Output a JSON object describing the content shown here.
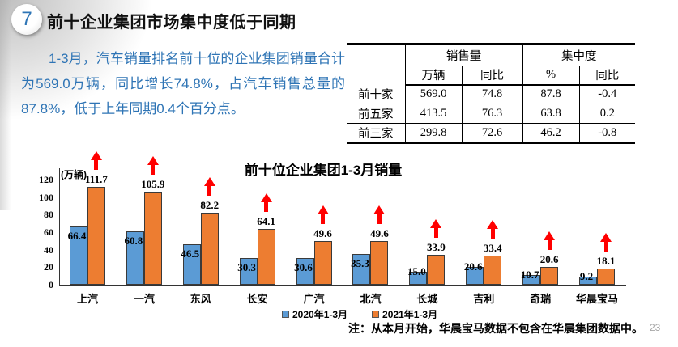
{
  "slide": {
    "badge": "7",
    "title": "前十企业集团市场集中度低于同期",
    "paragraph": "1-3月，汽车销量排名前十位的企业集团销量合计为569.0万辆，同比增长74.8%，占汽车销售总量的87.8%，低于上年同期0.4个百分点。",
    "note": "注：从本月开始，华晨宝马数据不包含在华晨集团数据中。",
    "page_number": "23"
  },
  "table": {
    "group_headers": [
      "销售量",
      "集中度"
    ],
    "sub_headers": [
      "万辆",
      "同比",
      "%",
      "同比"
    ],
    "rows": [
      {
        "label": "前十家",
        "values": [
          "569.0",
          "74.8",
          "87.8",
          "-0.4"
        ]
      },
      {
        "label": "前五家",
        "values": [
          "413.5",
          "76.3",
          "63.8",
          "0.2"
        ]
      },
      {
        "label": "前三家",
        "values": [
          "299.8",
          "72.6",
          "46.2",
          "-0.8"
        ]
      }
    ]
  },
  "chart_data": {
    "type": "bar",
    "title": "前十位企业集团1-3月销量",
    "unit_label": "(万辆)",
    "categories": [
      "上汽",
      "一汽",
      "东风",
      "长安",
      "广汽",
      "北汽",
      "长城",
      "吉利",
      "奇瑞",
      "华晨宝马"
    ],
    "series": [
      {
        "name": "2020年1-3月",
        "color": "#5B9BD5",
        "values": [
          66.4,
          60.8,
          46.5,
          30.3,
          30.6,
          35.3,
          15.0,
          20.6,
          10.7,
          9.2
        ]
      },
      {
        "name": "2021年1-3月",
        "color": "#ED7D31",
        "values": [
          111.7,
          105.9,
          82.2,
          64.1,
          49.6,
          49.6,
          33.9,
          33.4,
          20.6,
          18.1
        ]
      }
    ],
    "ylim": [
      0,
      120
    ],
    "yticks": [
      0,
      20,
      40,
      60,
      80,
      100,
      120
    ],
    "grid": false,
    "legend_position": "bottom",
    "annotations": "red up arrow above each 2021 bar"
  },
  "colors": {
    "text_blue": "#2E74B5",
    "badge_blue": "#2E75B6",
    "bar_blue": "#5B9BD5",
    "bar_orange": "#ED7D31",
    "arrow_red": "#FF0000",
    "page_gray": "#A6A6A6"
  }
}
